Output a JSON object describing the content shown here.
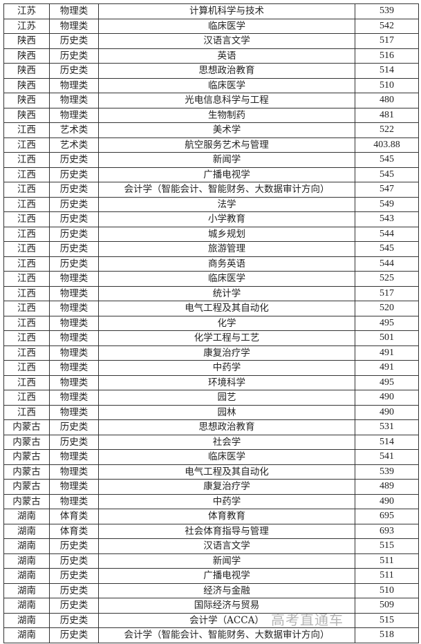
{
  "rows": [
    [
      "江苏",
      "物理类",
      "计算机科学与技术",
      "539"
    ],
    [
      "江苏",
      "物理类",
      "临床医学",
      "542"
    ],
    [
      "陕西",
      "历史类",
      "汉语言文学",
      "517"
    ],
    [
      "陕西",
      "历史类",
      "英语",
      "516"
    ],
    [
      "陕西",
      "历史类",
      "思想政治教育",
      "514"
    ],
    [
      "陕西",
      "物理类",
      "临床医学",
      "510"
    ],
    [
      "陕西",
      "物理类",
      "光电信息科学与工程",
      "480"
    ],
    [
      "陕西",
      "物理类",
      "生物制药",
      "481"
    ],
    [
      "江西",
      "艺术类",
      "美术学",
      "522"
    ],
    [
      "江西",
      "艺术类",
      "航空服务艺术与管理",
      "403.88"
    ],
    [
      "江西",
      "历史类",
      "新闻学",
      "545"
    ],
    [
      "江西",
      "历史类",
      "广播电视学",
      "545"
    ],
    [
      "江西",
      "历史类",
      "会计学（智能会计、智能财务、大数据审计方向）",
      "547"
    ],
    [
      "江西",
      "历史类",
      "法学",
      "549"
    ],
    [
      "江西",
      "历史类",
      "小学教育",
      "543"
    ],
    [
      "江西",
      "历史类",
      "城乡规划",
      "544"
    ],
    [
      "江西",
      "历史类",
      "旅游管理",
      "545"
    ],
    [
      "江西",
      "历史类",
      "商务英语",
      "544"
    ],
    [
      "江西",
      "物理类",
      "临床医学",
      "525"
    ],
    [
      "江西",
      "物理类",
      "统计学",
      "517"
    ],
    [
      "江西",
      "物理类",
      "电气工程及其自动化",
      "520"
    ],
    [
      "江西",
      "物理类",
      "化学",
      "495"
    ],
    [
      "江西",
      "物理类",
      "化学工程与工艺",
      "501"
    ],
    [
      "江西",
      "物理类",
      "康复治疗学",
      "491"
    ],
    [
      "江西",
      "物理类",
      "中药学",
      "491"
    ],
    [
      "江西",
      "物理类",
      "环境科学",
      "495"
    ],
    [
      "江西",
      "物理类",
      "园艺",
      "490"
    ],
    [
      "江西",
      "物理类",
      "园林",
      "490"
    ],
    [
      "内蒙古",
      "历史类",
      "思想政治教育",
      "531"
    ],
    [
      "内蒙古",
      "历史类",
      "社会学",
      "514"
    ],
    [
      "内蒙古",
      "物理类",
      "临床医学",
      "541"
    ],
    [
      "内蒙古",
      "物理类",
      "电气工程及其自动化",
      "539"
    ],
    [
      "内蒙古",
      "物理类",
      "康复治疗学",
      "489"
    ],
    [
      "内蒙古",
      "物理类",
      "中药学",
      "490"
    ],
    [
      "湖南",
      "体育类",
      "体育教育",
      "695"
    ],
    [
      "湖南",
      "体育类",
      "社会体育指导与管理",
      "693"
    ],
    [
      "湖南",
      "历史类",
      "汉语言文学",
      "515"
    ],
    [
      "湖南",
      "历史类",
      "新闻学",
      "511"
    ],
    [
      "湖南",
      "历史类",
      "广播电视学",
      "511"
    ],
    [
      "湖南",
      "历史类",
      "经济与金融",
      "510"
    ],
    [
      "湖南",
      "历史类",
      "国际经济与贸易",
      "509"
    ],
    [
      "湖南",
      "历史类",
      "会计学（ACCA）",
      "515"
    ],
    [
      "湖南",
      "历史类",
      "会计学（智能会计、智能财务、大数据审计方向）",
      "518"
    ]
  ],
  "watermark": "高考直通车"
}
